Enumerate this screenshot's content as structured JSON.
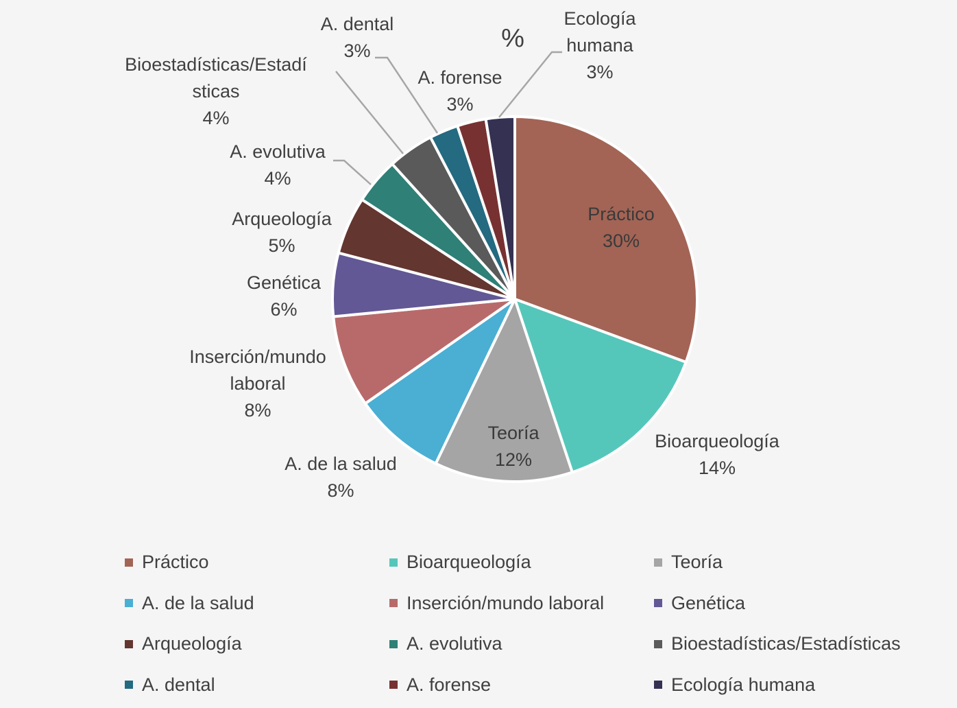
{
  "chart_data": {
    "type": "pie",
    "title": "%",
    "start_angle_deg": 0,
    "direction": "clockwise",
    "legend_position": "bottom",
    "slices": [
      {
        "label": "Práctico",
        "value": 30,
        "pct_label": "30%",
        "color": "#A36455",
        "label_lines": [
          "Práctico"
        ],
        "label_inside": true
      },
      {
        "label": "Bioarqueología",
        "value": 14,
        "pct_label": "14%",
        "color": "#55C7BA",
        "label_lines": [
          "Bioarqueología"
        ]
      },
      {
        "label": "Teoría",
        "value": 12,
        "pct_label": "12%",
        "color": "#A5A5A5",
        "label_lines": [
          "Teoría"
        ],
        "label_inside": true
      },
      {
        "label": "A. de la salud",
        "value": 8,
        "pct_label": "8%",
        "color": "#4AAFD3",
        "label_lines": [
          "A. de la salud"
        ]
      },
      {
        "label": "Inserción/mundo laboral",
        "value": 8,
        "pct_label": "8%",
        "color": "#B86A6A",
        "label_lines": [
          "Inserción/mundo",
          "laboral"
        ]
      },
      {
        "label": "Genética",
        "value": 5.5,
        "pct_label": "6%",
        "color": "#625895",
        "label_lines": [
          "Genética"
        ]
      },
      {
        "label": "Arqueología",
        "value": 5,
        "pct_label": "5%",
        "color": "#633630",
        "label_lines": [
          "Arqueología"
        ]
      },
      {
        "label": "A. evolutiva",
        "value": 4,
        "pct_label": "4%",
        "color": "#2F8077",
        "label_lines": [
          "A. evolutiva"
        ]
      },
      {
        "label": "Bioestadísticas/Estadísticas",
        "value": 4,
        "pct_label": "4%",
        "color": "#5A5A5A",
        "label_lines": [
          "Bioestadísticas/Estadí",
          "sticas"
        ]
      },
      {
        "label": "A. dental",
        "value": 2.5,
        "pct_label": "3%",
        "color": "#246A80",
        "label_lines": [
          "A. dental"
        ]
      },
      {
        "label": "A. forense",
        "value": 2.5,
        "pct_label": "3%",
        "color": "#783131",
        "label_lines": [
          "A. forense"
        ]
      },
      {
        "label": "Ecología humana",
        "value": 2.5,
        "pct_label": "3%",
        "color": "#343152",
        "label_lines": [
          "Ecología",
          "humana"
        ]
      }
    ]
  }
}
